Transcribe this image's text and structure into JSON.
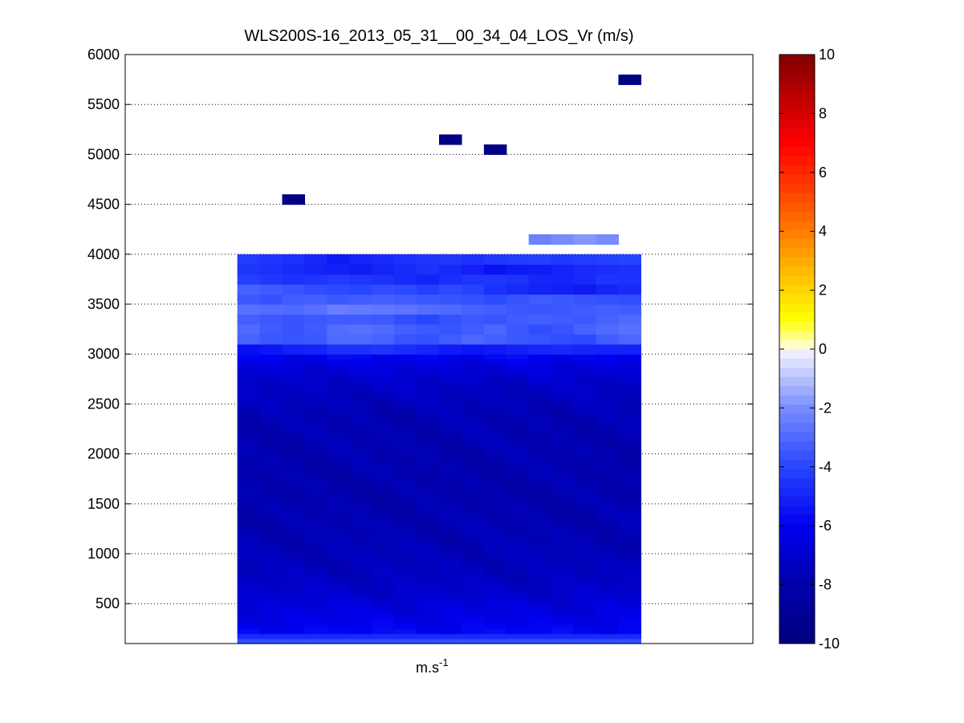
{
  "chart_data": {
    "type": "heatmap",
    "title": "WLS200S-16_2013_05_31__00_34_04_LOS_Vr (m/s)",
    "xlabel_base": "m.s",
    "xlabel_exp": "-1",
    "ylim": [
      100,
      6000
    ],
    "yticks": [
      500,
      1000,
      1500,
      2000,
      2500,
      3000,
      3500,
      4000,
      4500,
      5000,
      5500,
      6000
    ],
    "grid": "dotted horizontal",
    "columns": 18,
    "column_span": [
      5,
      23
    ],
    "column_total": 28,
    "row_height": 50,
    "low_rows": [
      {
        "z0": 100,
        "z1": 150,
        "value": -3.8
      },
      {
        "z0": 150,
        "z1": 200,
        "value": -4.8
      }
    ],
    "bulk_profile": [
      {
        "z": 200,
        "value": -5.8
      },
      {
        "z": 400,
        "value": -6.4
      },
      {
        "z": 600,
        "value": -7.0
      },
      {
        "z": 800,
        "value": -7.4
      },
      {
        "z": 1200,
        "value": -7.7
      },
      {
        "z": 1600,
        "value": -7.9
      },
      {
        "z": 2000,
        "value": -7.8
      },
      {
        "z": 2400,
        "value": -7.7
      },
      {
        "z": 2700,
        "value": -7.2
      },
      {
        "z": 2900,
        "value": -6.5
      },
      {
        "z": 3000,
        "value": -5.8
      }
    ],
    "upper_rows": [
      {
        "z0": 3000,
        "z1": 3100,
        "values": [
          -5.6,
          -5.4,
          -5.1,
          -5.0,
          -4.6,
          -4.6,
          -4.5,
          -4.7,
          -4.9,
          -5.2,
          -5.4,
          -5.3,
          -5.1,
          -4.9,
          -4.8,
          -4.9,
          -5.0,
          -5.0
        ]
      },
      {
        "z0": 3100,
        "z1": 3200,
        "values": [
          -3.2,
          -3.5,
          -3.6,
          -3.5,
          -3.0,
          -3.0,
          -3.2,
          -3.6,
          -3.7,
          -3.4,
          -3.1,
          -3.3,
          -3.5,
          -3.6,
          -3.8,
          -3.9,
          -3.4,
          -3.1
        ]
      },
      {
        "z0": 3200,
        "z1": 3300,
        "values": [
          -3.0,
          -3.4,
          -3.6,
          -3.4,
          -2.9,
          -2.8,
          -3.0,
          -3.3,
          -3.5,
          -3.6,
          -3.4,
          -3.1,
          -3.5,
          -3.8,
          -3.6,
          -3.2,
          -3.0,
          -2.8
        ]
      },
      {
        "z0": 3300,
        "z1": 3400,
        "values": [
          -3.3,
          -3.5,
          -3.6,
          -3.5,
          -3.4,
          -3.4,
          -3.5,
          -3.8,
          -4.0,
          -3.7,
          -3.5,
          -3.6,
          -3.4,
          -3.3,
          -3.4,
          -3.5,
          -3.2,
          -3.0
        ]
      },
      {
        "z0": 3400,
        "z1": 3500,
        "values": [
          -2.8,
          -2.9,
          -3.0,
          -2.8,
          -2.4,
          -2.5,
          -2.6,
          -2.7,
          -2.9,
          -3.0,
          -3.2,
          -3.3,
          -3.5,
          -3.6,
          -3.5,
          -3.4,
          -3.3,
          -3.4
        ]
      },
      {
        "z0": 3500,
        "z1": 3600,
        "values": [
          -3.5,
          -3.7,
          -3.4,
          -3.3,
          -3.5,
          -3.4,
          -3.3,
          -3.4,
          -3.5,
          -3.6,
          -3.7,
          -3.9,
          -3.6,
          -3.4,
          -3.5,
          -3.6,
          -3.7,
          -3.8
        ]
      },
      {
        "z0": 3600,
        "z1": 3700,
        "values": [
          -3.2,
          -3.4,
          -3.6,
          -3.8,
          -3.9,
          -4.0,
          -3.8,
          -3.9,
          -4.2,
          -3.9,
          -4.1,
          -4.6,
          -4.8,
          -5.0,
          -5.1,
          -5.3,
          -5.0,
          -4.8
        ]
      },
      {
        "z0": 3700,
        "z1": 3800,
        "values": [
          -4.2,
          -4.4,
          -4.6,
          -4.5,
          -4.3,
          -4.5,
          -4.6,
          -4.8,
          -5.0,
          -4.7,
          -4.5,
          -4.4,
          -4.6,
          -4.9,
          -5.0,
          -4.8,
          -4.5,
          -4.6
        ]
      },
      {
        "z0": 3800,
        "z1": 3900,
        "values": [
          -4.5,
          -4.6,
          -4.8,
          -5.0,
          -5.1,
          -5.2,
          -5.0,
          -4.8,
          -4.6,
          -4.8,
          -5.1,
          -5.5,
          -5.3,
          -5.2,
          -5.0,
          -4.8,
          -4.7,
          -4.6
        ]
      },
      {
        "z0": 3900,
        "z1": 4000,
        "values": [
          -4.3,
          -4.5,
          -4.6,
          -4.9,
          -5.3,
          -5.0,
          -4.8,
          -4.6,
          -4.5,
          -4.4,
          -4.6,
          -4.4,
          -4.3,
          -4.2,
          -4.4,
          -4.3,
          -4.2,
          -4.1
        ]
      }
    ],
    "isolated_cells": [
      {
        "col": 2,
        "z0": 4500,
        "z1": 4600,
        "value": -9.8
      },
      {
        "col": 9,
        "z0": 5100,
        "z1": 5200,
        "value": -9.8
      },
      {
        "col": 11,
        "z0": 5000,
        "z1": 5100,
        "value": -9.8
      },
      {
        "col": 13,
        "z0": 4100,
        "z1": 4200,
        "value": -2.3
      },
      {
        "col": 14,
        "z0": 4100,
        "z1": 4200,
        "value": -2.0
      },
      {
        "col": 15,
        "z0": 4100,
        "z1": 4200,
        "value": -1.8
      },
      {
        "col": 16,
        "z0": 4100,
        "z1": 4200,
        "value": -2.0
      },
      {
        "col": 17,
        "z0": 5700,
        "z1": 5800,
        "value": -9.8
      }
    ],
    "colorbar": {
      "range": [
        -10,
        10
      ],
      "ticks": [
        -10,
        -8,
        -6,
        -4,
        -2,
        0,
        2,
        4,
        6,
        8,
        10
      ],
      "levels": 64,
      "placement": "right"
    }
  }
}
